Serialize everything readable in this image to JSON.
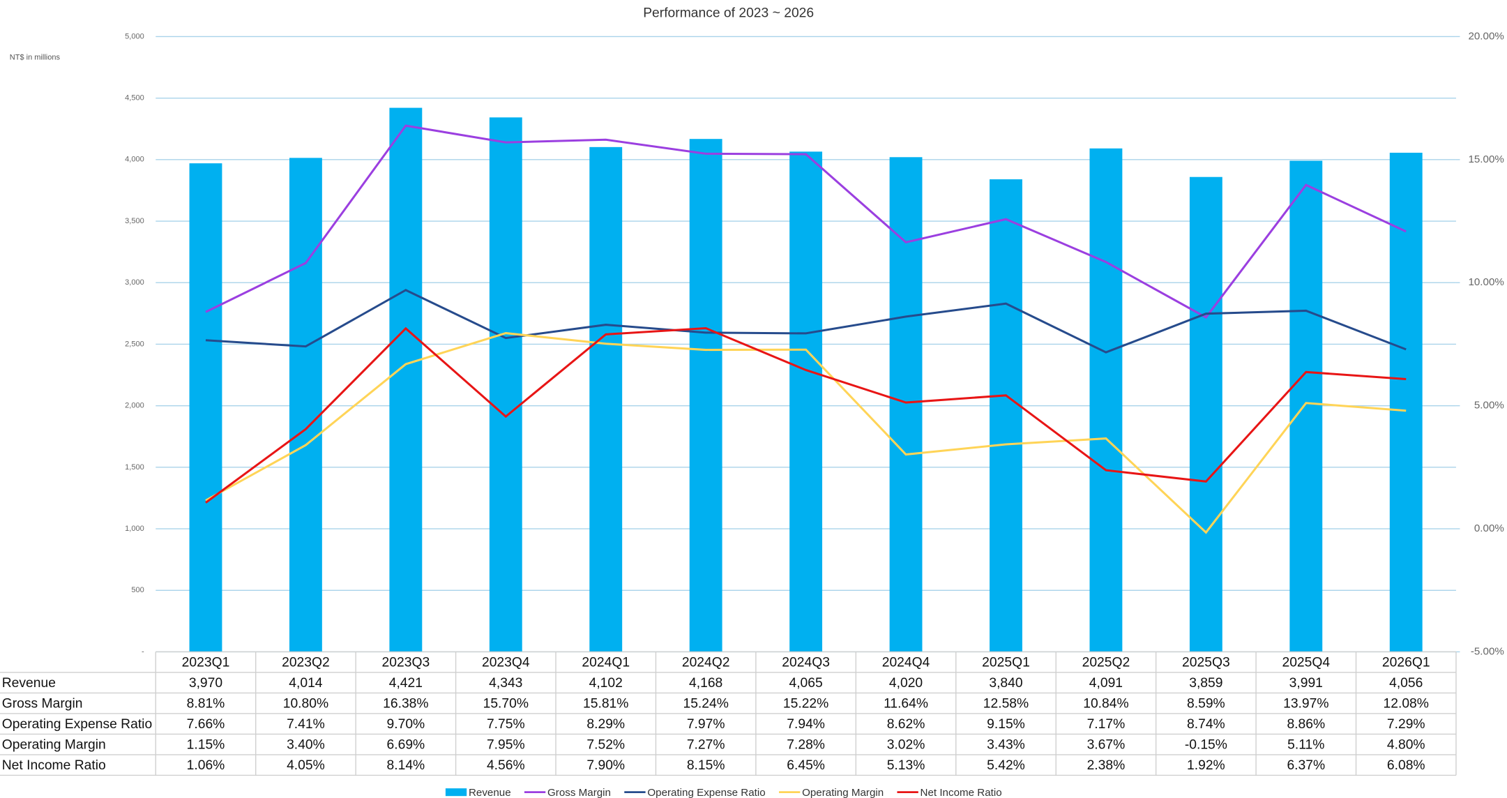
{
  "chart_data": {
    "type": "bar_line_table",
    "title": "Performance of 2023 ~ 2026",
    "y_axis_label": "NT$ in millions",
    "categories": [
      "2023Q1",
      "2023Q2",
      "2023Q3",
      "2023Q4",
      "2024Q1",
      "2024Q2",
      "2024Q3",
      "2024Q4",
      "2025Q1",
      "2025Q2",
      "2025Q3",
      "2025Q4",
      "2026Q1"
    ],
    "ylim": [
      0,
      5000
    ],
    "yticks": [
      {
        "value": 0,
        "label": "-"
      },
      500,
      {
        "value": 1000,
        "label": "1,000"
      },
      {
        "value": 1500,
        "label": "1,500"
      },
      {
        "value": 2000,
        "label": "2,000"
      },
      {
        "value": 2500,
        "label": "2,500"
      },
      {
        "value": 3000,
        "label": "3,000"
      },
      {
        "value": 3500,
        "label": "3,500"
      },
      {
        "value": 4000,
        "label": "4,000"
      },
      {
        "value": 4500,
        "label": "4,500"
      },
      {
        "value": 5000,
        "label": "5,000"
      }
    ],
    "y2lim": [
      -5,
      20
    ],
    "y2ticks": [
      {
        "value": -5,
        "label": "-5.00%"
      },
      {
        "value": 0,
        "label": "0.00%"
      },
      {
        "value": 5,
        "label": "5.00%"
      },
      {
        "value": 10,
        "label": "10.00%"
      },
      {
        "value": 15,
        "label": "15.00%"
      },
      {
        "value": 20,
        "label": "20.00%"
      }
    ],
    "grid": true,
    "legend": "bottom",
    "series": [
      {
        "name": "Revenue",
        "type": "bar",
        "color": "#00b0f0",
        "values": [
          3970,
          4014,
          4421,
          4343,
          4102,
          4168,
          4065,
          4020,
          3840,
          4091,
          3859,
          3991,
          4056
        ],
        "value_labels": [
          "3,970",
          "4,014",
          "4,421",
          "4,343",
          "4,102",
          "4,168",
          "4,065",
          "4,020",
          "3,840",
          "4,091",
          "3,859",
          "3,991",
          "4,056"
        ]
      },
      {
        "name": "Gross Margin",
        "type": "line",
        "axis": "y2",
        "color": "#9b3fe0",
        "values": [
          8.81,
          10.8,
          16.38,
          15.7,
          15.81,
          15.24,
          15.22,
          11.64,
          12.58,
          10.84,
          8.59,
          13.97,
          12.08
        ],
        "value_labels": [
          "8.81%",
          "10.80%",
          "16.38%",
          "15.70%",
          "15.81%",
          "15.24%",
          "15.22%",
          "11.64%",
          "12.58%",
          "10.84%",
          "8.59%",
          "13.97%",
          "12.08%"
        ]
      },
      {
        "name": "Operating Expense Ratio",
        "type": "line",
        "axis": "y2",
        "color": "#264b8c",
        "values": [
          7.66,
          7.41,
          9.7,
          7.75,
          8.29,
          7.97,
          7.94,
          8.62,
          9.15,
          7.17,
          8.74,
          8.86,
          7.29
        ],
        "value_labels": [
          "7.66%",
          "7.41%",
          "9.70%",
          "7.75%",
          "8.29%",
          "7.97%",
          "7.94%",
          "8.62%",
          "9.15%",
          "7.17%",
          "8.74%",
          "8.86%",
          "7.29%"
        ]
      },
      {
        "name": "Operating Margin",
        "type": "line",
        "axis": "y2",
        "color": "#ffd457",
        "values": [
          1.15,
          3.4,
          6.69,
          7.95,
          7.52,
          7.27,
          7.28,
          3.02,
          3.43,
          3.67,
          -0.15,
          5.11,
          4.8
        ],
        "value_labels": [
          "1.15%",
          "3.40%",
          "6.69%",
          "7.95%",
          "7.52%",
          "7.27%",
          "7.28%",
          "3.02%",
          "3.43%",
          "3.67%",
          "-0.15%",
          "5.11%",
          "4.80%"
        ]
      },
      {
        "name": "Net Income Ratio",
        "type": "line",
        "axis": "y2",
        "color": "#e81515",
        "values": [
          1.06,
          4.05,
          8.14,
          4.56,
          7.9,
          8.15,
          6.45,
          5.13,
          5.42,
          2.38,
          1.92,
          6.37,
          6.08
        ],
        "value_labels": [
          "1.06%",
          "4.05%",
          "8.14%",
          "4.56%",
          "7.90%",
          "8.15%",
          "6.45%",
          "5.13%",
          "5.42%",
          "2.38%",
          "1.92%",
          "6.37%",
          "6.08%"
        ]
      }
    ]
  }
}
